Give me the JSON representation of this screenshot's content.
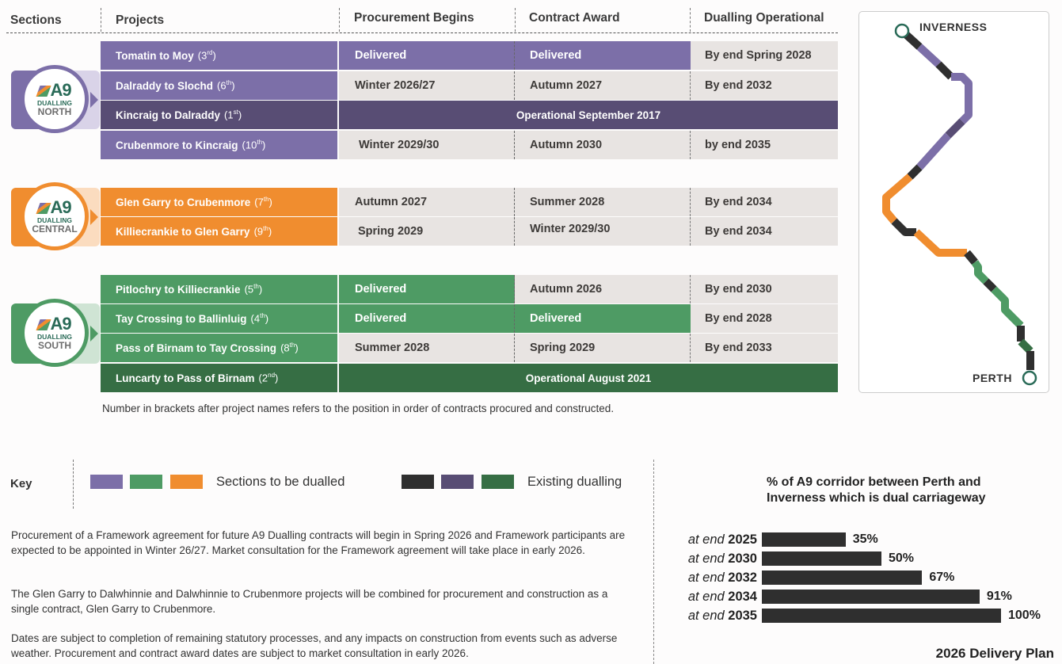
{
  "headers": {
    "sections": "Sections",
    "projects": "Projects",
    "procurement_begins": "Procurement Begins",
    "contract_award": "Contract Award",
    "dualling_operational": "Dualling Operational"
  },
  "colors": {
    "north_to_dual": "#7c6fa8",
    "north_existing": "#584d74",
    "central_to_dual": "#f08d2f",
    "south_to_dual": "#4e9b64",
    "south_existing": "#366e44",
    "existing_dark": "#2f2f2f",
    "cell_grey": "#e8e4e2"
  },
  "sections": [
    {
      "name": "North",
      "logo": {
        "a9": "A9",
        "dualling": "DUALLING",
        "region": "NORTH"
      },
      "rows": [
        {
          "project": "Tomatin to Moy",
          "order": "3",
          "suffix": "rd",
          "procurement": "Delivered",
          "award": "Delivered",
          "operational": "By end Spring 2028"
        },
        {
          "project": "Dalraddy to Slochd",
          "order": "6",
          "suffix": "th",
          "procurement": "Winter 2026/27",
          "award": "Autumn 2027",
          "operational": "By end 2032"
        },
        {
          "project": "Kincraig to Dalraddy",
          "order": "1",
          "suffix": "st",
          "status": "Operational September 2017"
        },
        {
          "project": "Crubenmore to Kincraig",
          "order": "10",
          "suffix": "th",
          "procurement": "Winter 2029/30",
          "award": "Autumn 2030",
          "operational": "by end 2035"
        }
      ]
    },
    {
      "name": "Central",
      "logo": {
        "a9": "A9",
        "dualling": "DUALLING",
        "region": "CENTRAL"
      },
      "rows": [
        {
          "project": "Glen Garry to Crubenmore",
          "order": "7",
          "suffix": "th",
          "procurement": "Autumn 2027",
          "award": "Summer 2028",
          "operational": "By end 2034"
        },
        {
          "project": "Killiecrankie to Glen Garry",
          "order": "9",
          "suffix": "th",
          "procurement": "Spring 2029",
          "award": "Winter 2029/30",
          "operational": "By end 2034"
        }
      ]
    },
    {
      "name": "South",
      "logo": {
        "a9": "A9",
        "dualling": "DUALLING",
        "region": "SOUTH"
      },
      "rows": [
        {
          "project": "Pitlochry to Killiecrankie",
          "order": "5",
          "suffix": "th",
          "procurement": "Delivered",
          "award": "Autumn 2026",
          "operational": "By end 2030"
        },
        {
          "project": "Tay Crossing to Ballinluig",
          "order": "4",
          "suffix": "th",
          "procurement": "Delivered",
          "award": "Delivered",
          "operational": "By end 2028"
        },
        {
          "project": "Pass of Birnam to Tay Crossing",
          "order": "8",
          "suffix": "th",
          "procurement": "Summer 2028",
          "award": "Spring 2029",
          "operational": "By end 2033"
        },
        {
          "project": "Luncarty to Pass of Birnam",
          "order": "2",
          "suffix": "nd",
          "status": "Operational August 2021"
        }
      ]
    }
  ],
  "footnote": "Number in brackets after project names refers to the position in order of contracts procured and constructed.",
  "map": {
    "north_label": "INVERNESS",
    "south_label": "PERTH"
  },
  "key": {
    "label": "Key",
    "to_be_dualled": "Sections to be dualled",
    "existing": "Existing dualling"
  },
  "paragraphs": [
    "Procurement of a Framework agreement for future A9 Dualling contracts will begin in Spring 2026 and Framework participants are expected to be appointed in Winter 26/27. Market consultation for the Framework agreement will take place in early 2026.",
    "The Glen Garry to Dalwhinnie and Dalwhinnie to Crubenmore projects will be combined for procurement and construction as a single contract, Glen Garry to Crubenmore.",
    "Dates are subject to completion of remaining statutory processes, and any impacts on construction from events such as adverse weather. Procurement and contract award dates are subject to market consultation in early 2026."
  ],
  "chart_data": {
    "type": "bar",
    "orientation": "horizontal",
    "title": "% of A9 corridor between Perth and Inverness which is dual carriageway",
    "title_line1": "% of A9 corridor between Perth and",
    "title_line2": "Inverness which is dual carriageway",
    "label_prefix": "at end",
    "categories": [
      "2025",
      "2030",
      "2032",
      "2034",
      "2035"
    ],
    "values": [
      35,
      50,
      67,
      91,
      100
    ],
    "value_labels": [
      "35%",
      "50%",
      "67%",
      "91%",
      "100%"
    ],
    "xlabel": "",
    "ylabel": "",
    "xlim": [
      0,
      100
    ],
    "bar_color": "#2f2f2f",
    "grid": false,
    "footer": "2026 Delivery Plan"
  }
}
